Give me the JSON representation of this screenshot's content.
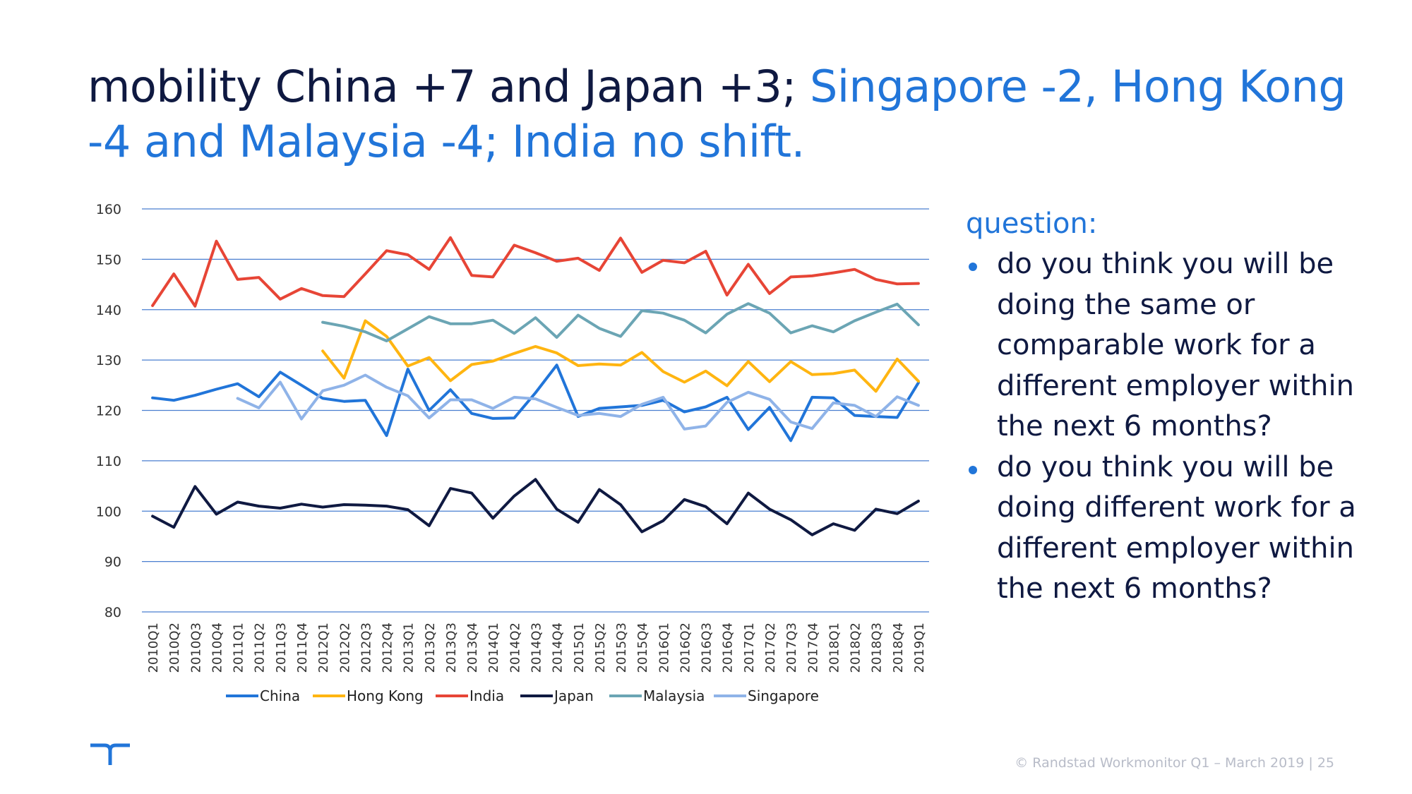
{
  "title": {
    "dark_part": "mobility China +7 and Japan +3; ",
    "blue_part": "Singapore -2, Hong Kong -4 and Malaysia -4; India no shift."
  },
  "side_panel": {
    "heading": "question:",
    "bullets": [
      "do you think you will be doing the same or comparable work for a different employer within the next 6 months?",
      "do you think you will be doing different work for a different employer within the next 6 months?"
    ]
  },
  "footer": {
    "text": "© Randstad Workmonitor Q1 – March 2019 | 25"
  },
  "logo": {
    "icon": "randstad-logo-icon",
    "color": "#2175d9"
  },
  "chart_data": {
    "type": "line",
    "title": "",
    "xlabel": "",
    "ylabel": "",
    "ylim": [
      80,
      160
    ],
    "yticks": [
      80,
      90,
      100,
      110,
      120,
      130,
      140,
      150,
      160
    ],
    "grid": true,
    "legend_position": "bottom",
    "categories": [
      "2010Q1",
      "2010Q2",
      "2010Q3",
      "2010Q4",
      "2011Q1",
      "2011Q2",
      "2011Q3",
      "2011Q4",
      "2012Q1",
      "2012Q2",
      "2012Q3",
      "2012Q4",
      "2013Q1",
      "2013Q2",
      "2013Q3",
      "2013Q4",
      "2014Q1",
      "2014Q2",
      "2014Q3",
      "2014Q4",
      "2015Q1",
      "2015Q2",
      "2015Q3",
      "2015Q4",
      "2016Q1",
      "2016Q2",
      "2016Q3",
      "2016Q4",
      "2017Q1",
      "2017Q2",
      "2017Q3",
      "2017Q4",
      "2018Q1",
      "2018Q2",
      "2018Q3",
      "2018Q4",
      "2019Q1"
    ],
    "series": [
      {
        "name": "China",
        "color": "#2175d9",
        "values": [
          122.5,
          122,
          123,
          124.2,
          125.3,
          122.7,
          127.6,
          125,
          122.4,
          121.8,
          122,
          115,
          128.2,
          120,
          124.1,
          119.4,
          118.4,
          118.5,
          123.5,
          129,
          118.8,
          120.4,
          120.7,
          121,
          122,
          119.7,
          120.7,
          122.6,
          116.2,
          120.6,
          114,
          122.6,
          122.5,
          119,
          118.8,
          118.6,
          125.5
        ]
      },
      {
        "name": "Hong Kong",
        "color": "#ffb511",
        "values": [
          null,
          null,
          null,
          null,
          null,
          null,
          null,
          null,
          131.8,
          126.4,
          137.8,
          134.7,
          128.8,
          130.5,
          125.9,
          129.1,
          129.8,
          131.3,
          132.7,
          131.4,
          128.9,
          129.2,
          129,
          131.5,
          127.7,
          125.6,
          127.8,
          124.9,
          129.7,
          125.7,
          129.7,
          127.1,
          127.3,
          128,
          123.8,
          130.2,
          125.8
        ]
      },
      {
        "name": "India",
        "color": "#e74536",
        "values": [
          140.8,
          147.1,
          140.7,
          153.6,
          146,
          146.4,
          142.1,
          144.2,
          142.8,
          142.6,
          147.1,
          151.7,
          150.9,
          148,
          154.3,
          146.8,
          146.5,
          152.8,
          151.3,
          149.6,
          150.2,
          147.8,
          154.2,
          147.4,
          149.8,
          149.3,
          151.6,
          142.9,
          149,
          143.2,
          146.5,
          146.7,
          147.3,
          148,
          146,
          145.1,
          145.2
        ]
      },
      {
        "name": "Japan",
        "color": "#0f1941",
        "values": [
          99,
          96.8,
          104.9,
          99.4,
          101.8,
          101,
          100.6,
          101.4,
          100.8,
          101.3,
          101.2,
          101,
          100.3,
          97.1,
          104.5,
          103.6,
          98.6,
          103,
          106.3,
          100.4,
          97.8,
          104.3,
          101.3,
          95.9,
          98.1,
          102.3,
          100.9,
          97.5,
          103.6,
          100.4,
          98.3,
          95.3,
          97.5,
          96.2,
          100.4,
          99.5,
          102
        ]
      },
      {
        "name": "Malaysia",
        "color": "#6ba5b4",
        "values": [
          null,
          null,
          null,
          null,
          null,
          null,
          null,
          null,
          137.5,
          136.7,
          135.6,
          133.8,
          136.2,
          138.6,
          137.2,
          137.2,
          137.9,
          135.3,
          138.4,
          134.5,
          138.9,
          136.3,
          134.7,
          139.8,
          139.3,
          137.9,
          135.4,
          139.1,
          141.2,
          139.3,
          135.4,
          136.8,
          135.6,
          137.8,
          139.5,
          141.1,
          137
        ]
      },
      {
        "name": "Singapore",
        "color": "#8fb3e8",
        "values": [
          null,
          null,
          null,
          null,
          122.4,
          120.5,
          125.6,
          118.3,
          123.9,
          125,
          127,
          124.6,
          122.9,
          118.5,
          122.1,
          122.1,
          120.4,
          122.6,
          122.3,
          120.6,
          119,
          119.4,
          118.8,
          121.2,
          122.6,
          116.3,
          116.9,
          121.6,
          123.6,
          122.2,
          117.7,
          116.4,
          121.5,
          121,
          118.8,
          122.7,
          121
        ]
      }
    ]
  }
}
